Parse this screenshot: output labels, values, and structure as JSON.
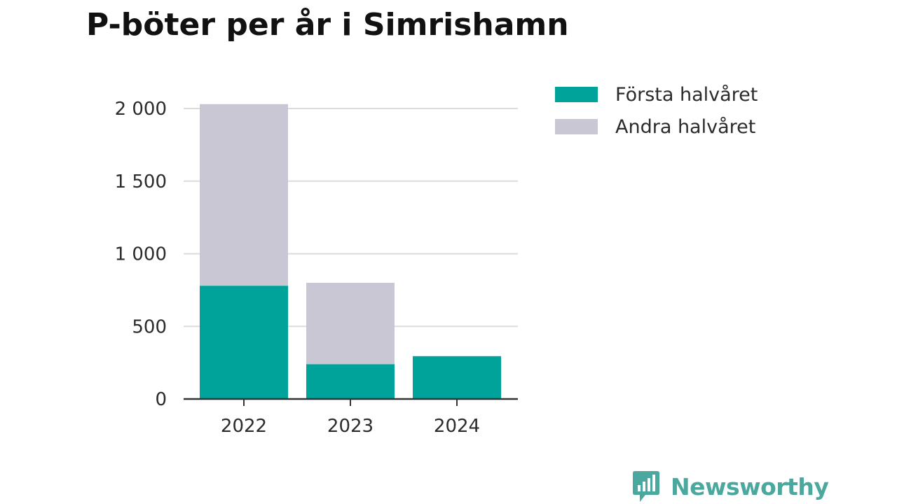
{
  "colors": {
    "first_half": "#00a39a",
    "second_half": "#c8c7d3",
    "grid": "#dcdcdc",
    "axis": "#333333",
    "brand": "#4aa89e"
  },
  "brand": {
    "name": "Newsworthy",
    "icon": "speech-bubble-bar-chart-icon"
  },
  "chart_data": {
    "type": "bar",
    "stacked": true,
    "title": "P-böter per år i Simrishamn",
    "xlabel": "",
    "ylabel": "",
    "categories": [
      "2022",
      "2023",
      "2024"
    ],
    "series": [
      {
        "name": "Första halvåret",
        "values": [
          780,
          240,
          295
        ]
      },
      {
        "name": "Andra halvåret",
        "values": [
          1250,
          560,
          0
        ]
      }
    ],
    "ylim": [
      0,
      2000
    ],
    "yticks": [
      0,
      500,
      1000,
      1500,
      2000
    ],
    "ytick_labels": [
      "0",
      "500",
      "1 000",
      "1 500",
      "2 000"
    ],
    "grid": true,
    "legend_position": "right"
  }
}
